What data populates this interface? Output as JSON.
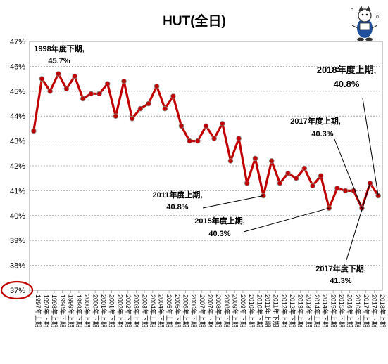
{
  "chart_data": {
    "type": "line",
    "title": "HUT(全日)",
    "xlabel": "",
    "ylabel": "",
    "ylim": [
      37,
      47
    ],
    "yticks": [
      "37%",
      "38%",
      "39%",
      "40%",
      "41%",
      "42%",
      "43%",
      "44%",
      "45%",
      "46%",
      "47%"
    ],
    "grid": true,
    "legend": "none",
    "line_color": "#c00000",
    "marker_color": "#c00000",
    "highlight_color": "#c00000",
    "highlighted_tick": "37%",
    "categories": [
      "1997年上期",
      "1997年下期",
      "1998年上期",
      "1998年下期",
      "1999年上期",
      "1999年下期",
      "2000年上期",
      "2000年下期",
      "2001年上期",
      "2001年下期",
      "2002年上期",
      "2002年下期",
      "2003年上期",
      "2003年下期",
      "2004年上期",
      "2004年下期",
      "2005年上期",
      "2005年下期",
      "2006年上期",
      "2006年下期",
      "2007年上期",
      "2007年下期",
      "2008年上期",
      "2008年下期",
      "2009年上期",
      "2009年下期",
      "2010年上期",
      "2010年下期",
      "2011年上期",
      "2011年下期",
      "2012年上期",
      "2012年下期",
      "2013年上期",
      "2013年下期",
      "2014年上期",
      "2014年下期",
      "2015年上期",
      "2015年下期",
      "2016年上期",
      "2016年下期",
      "2017年上期",
      "2017年下期",
      "2018年上期"
    ],
    "values": [
      43.4,
      45.5,
      45.0,
      45.7,
      45.1,
      45.6,
      44.7,
      44.9,
      44.9,
      45.3,
      44.0,
      45.4,
      43.9,
      44.3,
      44.5,
      45.2,
      44.3,
      44.8,
      43.6,
      43.0,
      43.0,
      43.6,
      43.1,
      43.7,
      42.2,
      43.1,
      41.3,
      42.3,
      40.8,
      42.2,
      41.3,
      41.7,
      41.5,
      41.9,
      41.2,
      41.6,
      40.3,
      41.1,
      41.0,
      41.0,
      40.3,
      41.3,
      40.8
    ],
    "annotations": [
      {
        "label": "1998年度下期,",
        "value": "45.7%",
        "index": 3
      },
      {
        "label": "2011年度上期,",
        "value": "40.8%",
        "index": 28
      },
      {
        "label": "2015年度上期,",
        "value": "40.3%",
        "index": 36
      },
      {
        "label": "2017年度上期,",
        "value": "40.3%",
        "index": 40
      },
      {
        "label": "2017年度下期,",
        "value": "41.3%",
        "index": 41
      },
      {
        "label": "2018年度上期,",
        "value": "40.8%",
        "index": 42
      }
    ]
  }
}
